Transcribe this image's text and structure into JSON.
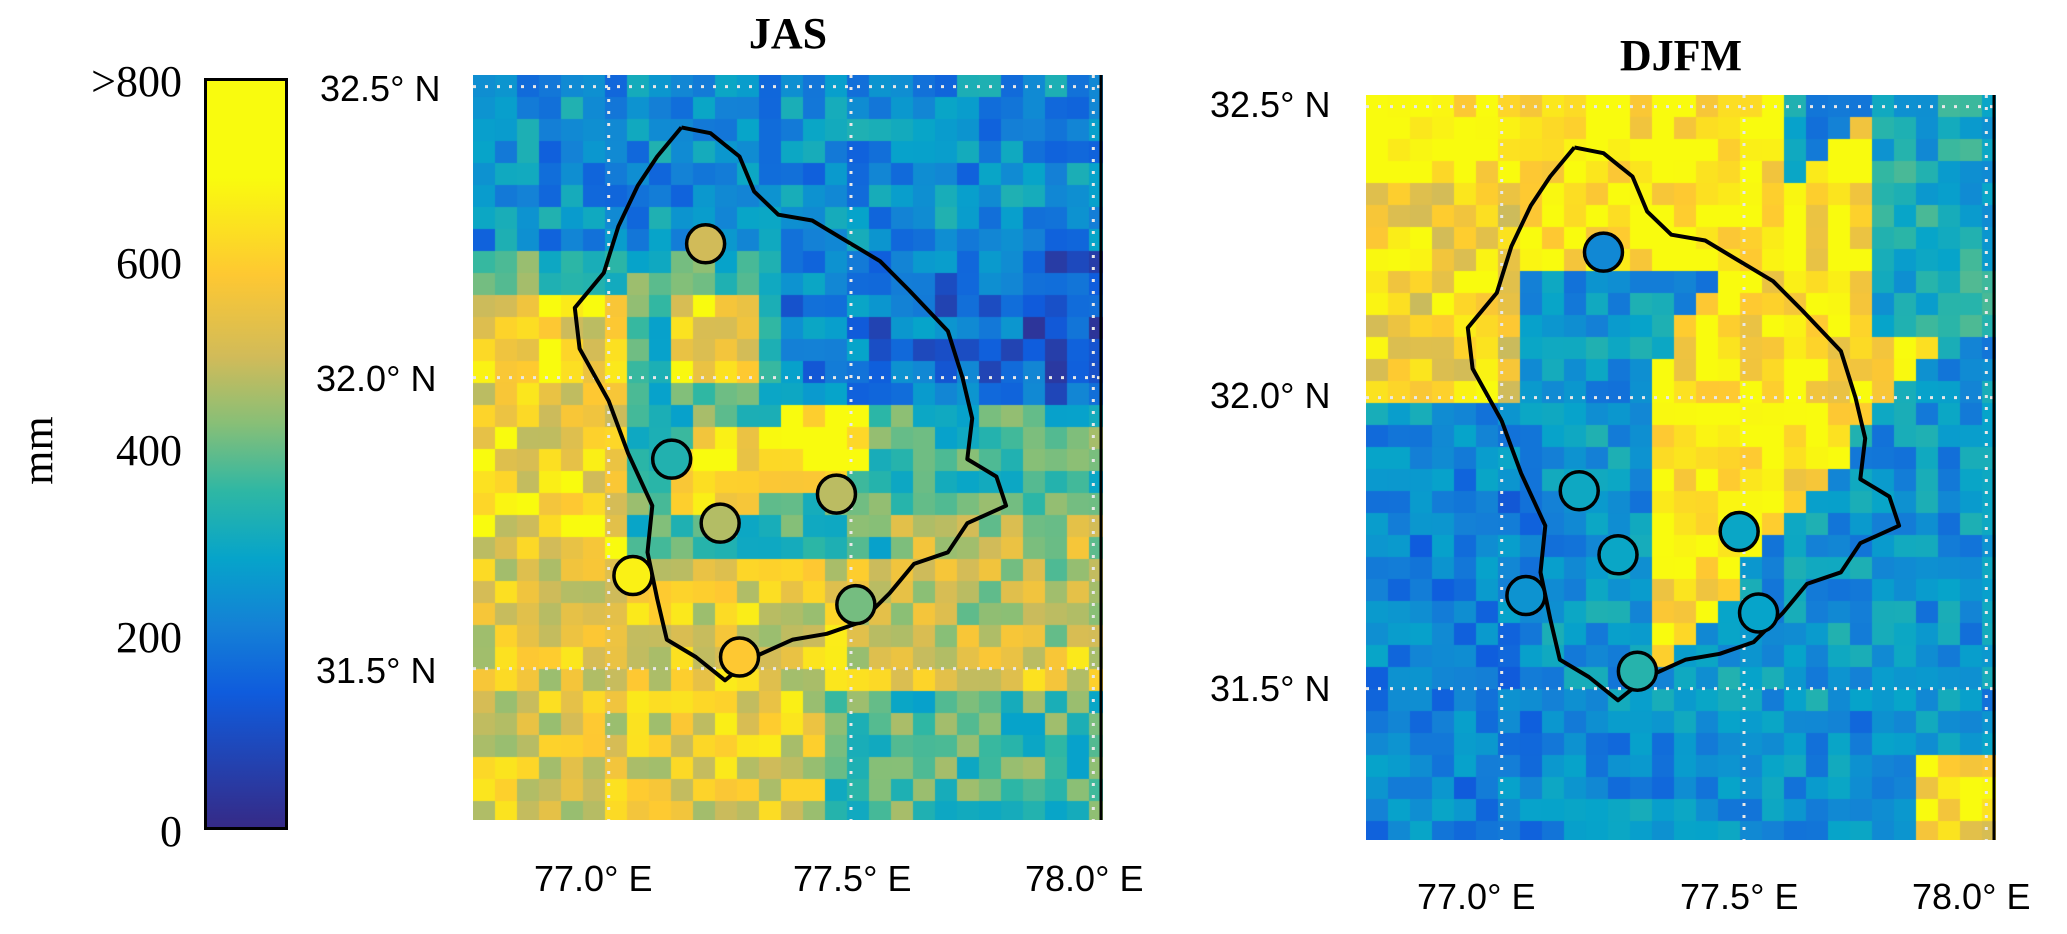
{
  "colorbar": {
    "ticks": [
      "0",
      "200",
      "400",
      "600",
      ">800"
    ],
    "tick_values": [
      0,
      200,
      400,
      600,
      800
    ],
    "unit": "mm",
    "colors": [
      "#352a87",
      "#0f5cdd",
      "#1481d6",
      "#06a4ca",
      "#2eb7a4",
      "#87bf77",
      "#d1bb59",
      "#fec832",
      "#f9fb0e"
    ]
  },
  "panels": [
    {
      "title": "JAS",
      "lat_labels": [
        "32.5° N",
        "32.0° N",
        "31.5° N"
      ],
      "lon_labels": [
        "77.0° E",
        "77.5° E",
        "78.0° E"
      ],
      "stations": [
        {
          "lon": 77.2,
          "lat": 32.23,
          "value": 600
        },
        {
          "lon": 77.13,
          "lat": 31.86,
          "value": 370
        },
        {
          "lon": 77.23,
          "lat": 31.75,
          "value": 560
        },
        {
          "lon": 77.47,
          "lat": 31.8,
          "value": 570
        },
        {
          "lon": 77.05,
          "lat": 31.66,
          "value": 780
        },
        {
          "lon": 77.51,
          "lat": 31.61,
          "value": 480
        },
        {
          "lon": 77.27,
          "lat": 31.52,
          "value": 700
        }
      ]
    },
    {
      "title": "DJFM",
      "lat_labels": [
        "32.5° N",
        "32.0° N",
        "31.5° N"
      ],
      "lon_labels": [
        "77.0° E",
        "77.5° E",
        "78.0° E"
      ],
      "stations": [
        {
          "lon": 77.21,
          "lat": 32.25,
          "value": 220
        },
        {
          "lon": 77.16,
          "lat": 31.84,
          "value": 320
        },
        {
          "lon": 77.24,
          "lat": 31.73,
          "value": 310
        },
        {
          "lon": 77.49,
          "lat": 31.77,
          "value": 310
        },
        {
          "lon": 77.05,
          "lat": 31.66,
          "value": 250
        },
        {
          "lon": 77.53,
          "lat": 31.63,
          "value": 300
        },
        {
          "lon": 77.28,
          "lat": 31.53,
          "value": 380
        }
      ]
    }
  ]
}
